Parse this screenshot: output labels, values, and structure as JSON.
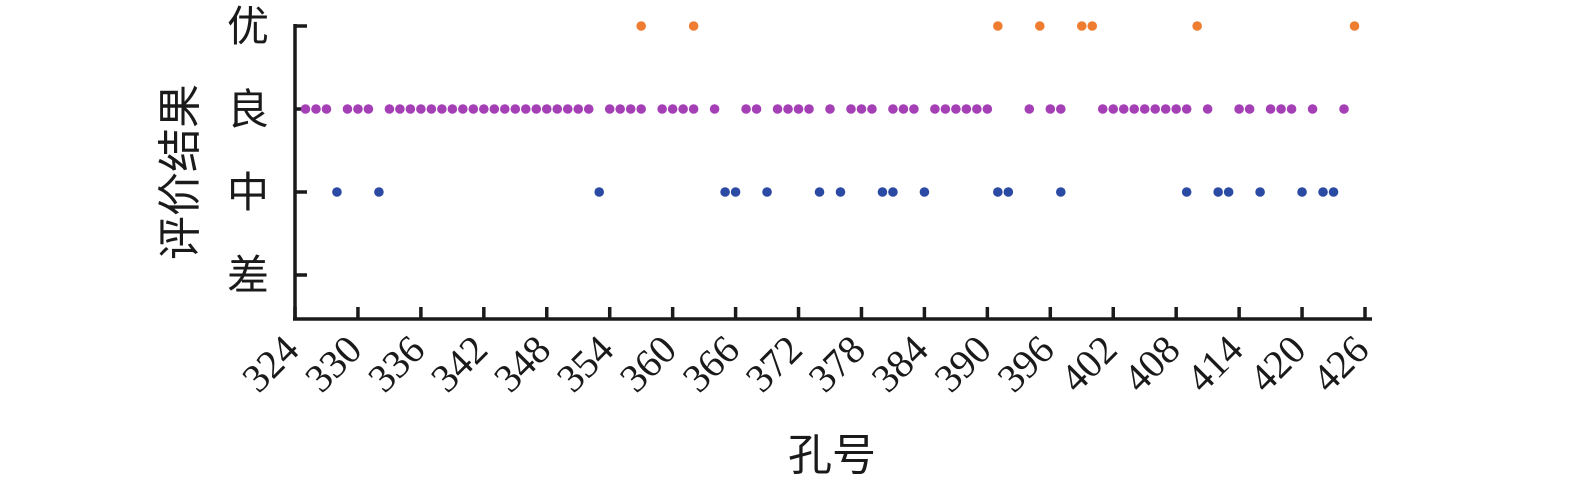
{
  "chart_data": {
    "type": "scatter",
    "xlabel": "孔号",
    "ylabel": "评价结果",
    "xlim": [
      324,
      426
    ],
    "x_ticks": [
      324,
      330,
      336,
      342,
      348,
      354,
      360,
      366,
      372,
      378,
      384,
      390,
      396,
      402,
      408,
      414,
      420,
      426
    ],
    "y_categories": [
      "差",
      "中",
      "良",
      "优"
    ],
    "grid": false,
    "legend": "none",
    "series": [
      {
        "category": "优",
        "color": "#ef7d31",
        "x": [
          357,
          362,
          391,
          395,
          399,
          400,
          410,
          425
        ]
      },
      {
        "category": "良",
        "color": "#a43fb6",
        "x": [
          325,
          326,
          327,
          329,
          330,
          331,
          333,
          334,
          335,
          336,
          337,
          338,
          339,
          340,
          341,
          342,
          343,
          344,
          345,
          346,
          347,
          348,
          349,
          350,
          351,
          352,
          354,
          355,
          356,
          357,
          359,
          360,
          361,
          362,
          364,
          367,
          368,
          370,
          371,
          372,
          373,
          375,
          377,
          378,
          379,
          381,
          382,
          383,
          385,
          386,
          387,
          388,
          389,
          390,
          394,
          396,
          397,
          401,
          402,
          403,
          404,
          405,
          406,
          407,
          408,
          409,
          411,
          414,
          415,
          417,
          418,
          419,
          421,
          424
        ]
      },
      {
        "category": "中",
        "color": "#2b4aa3",
        "x": [
          328,
          332,
          353,
          365,
          366,
          369,
          374,
          376,
          380,
          381,
          384,
          391,
          392,
          397,
          409,
          412,
          413,
          416,
          420,
          422,
          423
        ]
      }
    ]
  }
}
